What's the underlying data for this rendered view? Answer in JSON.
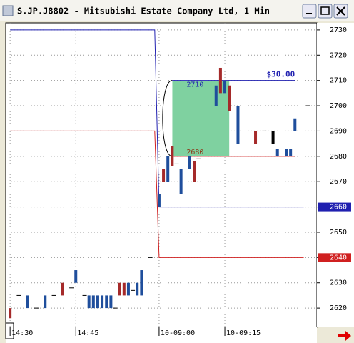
{
  "chart_data": {
    "type": "range-bar",
    "title": "S.JP.J8802 - Mitsubishi Estate Company Ltd, 1 Min",
    "xlim": [
      -1,
      70
    ],
    "ylim": [
      2612.4,
      2732.8
    ],
    "xticks": [
      {
        "value": 0,
        "label": "14:30"
      },
      {
        "value": 15,
        "label": "14:45"
      },
      {
        "value": 34,
        "label": "10-09:00"
      },
      {
        "value": 49,
        "label": "10-09:15"
      }
    ],
    "yticks": [
      2620,
      2630,
      2640,
      2650,
      2660,
      2670,
      2680,
      2690,
      2700,
      2710,
      2720,
      2730
    ],
    "grid": true,
    "series": [
      {
        "color": "#1f4e9c",
        "x": [
          4,
          8,
          15,
          18,
          19,
          20,
          21,
          22,
          23,
          27,
          29,
          30,
          34,
          36,
          39,
          41,
          47,
          49,
          52,
          61,
          63,
          64,
          65
        ],
        "low": [
          2620,
          2620,
          2630,
          2620,
          2620,
          2620,
          2620,
          2620,
          2620,
          2625,
          2625,
          2625,
          2660,
          2670,
          2665,
          2675,
          2700,
          2705,
          2685,
          2680,
          2680,
          2680,
          2690
        ],
        "high": [
          2625,
          2625,
          2635,
          2625,
          2625,
          2625,
          2625,
          2625,
          2625,
          2630,
          2630,
          2635,
          2665,
          2680,
          2675,
          2680,
          2708,
          2710,
          2700,
          2683,
          2683,
          2683,
          2695
        ]
      },
      {
        "color": "#a52a2a",
        "x": [
          0,
          12,
          25,
          26,
          35,
          37,
          42,
          48,
          50,
          56
        ],
        "low": [
          2616,
          2625,
          2625,
          2625,
          2670,
          2676,
          2670,
          2705,
          2698,
          2685
        ],
        "high": [
          2620,
          2630,
          2630,
          2630,
          2675,
          2684,
          2678,
          2715,
          2708,
          2690
        ]
      },
      {
        "color": "#000000",
        "x": [
          2,
          6,
          10,
          14,
          17,
          24,
          28,
          32,
          38,
          40,
          43,
          58,
          60,
          68
        ],
        "low": [
          2625,
          2620,
          2625,
          2628,
          2625,
          2620,
          2627,
          2640,
          2677,
          2675,
          2679,
          2690,
          2685,
          2700
        ],
        "high": [
          2625,
          2620,
          2625,
          2628,
          2625,
          2620,
          2627,
          2640,
          2677,
          2675,
          2679,
          2690,
          2690,
          2700
        ]
      }
    ],
    "levels": [
      {
        "color": "#2020b0",
        "x": [
          0,
          33,
          34,
          67
        ],
        "values": [
          2730,
          2730,
          2660,
          2660
        ],
        "marker": 2660
      },
      {
        "color": "#d02020",
        "x": [
          0,
          33,
          34,
          67
        ],
        "values": [
          2690,
          2690,
          2640,
          2640
        ],
        "marker": 2640
      }
    ],
    "measure": {
      "x": [
        37,
        50,
        65
      ],
      "high": 2710,
      "low": 2680,
      "label": "$30.00",
      "color": "#7fd1a0"
    }
  }
}
